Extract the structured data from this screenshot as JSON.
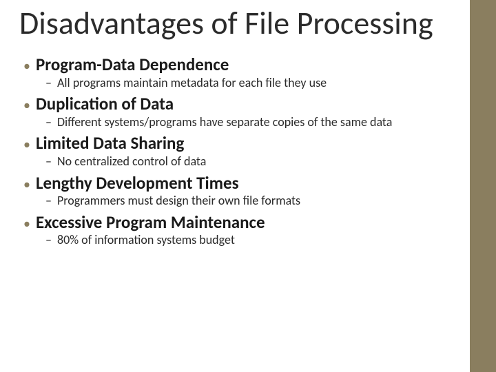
{
  "title": "Disadvantages of File Processing",
  "points": [
    {
      "heading": "Program-Data Dependence",
      "sub": "All programs maintain metadata for each file they use"
    },
    {
      "heading": "Duplication of Data",
      "sub": "Different systems/programs have separate copies of the same data"
    },
    {
      "heading": "Limited Data Sharing",
      "sub": "No centralized control of data"
    },
    {
      "heading": "Lengthy Development Times",
      "sub": "Programmers must design their own file formats"
    },
    {
      "heading": "Excessive Program Maintenance",
      "sub": "80% of information systems budget"
    }
  ],
  "colors": {
    "sidebar": "#8a7e5f",
    "bullet_dot": "#8a7e5f",
    "text": "#2b2b2b",
    "background": "#ffffff"
  },
  "typography": {
    "title_fontsize": 46,
    "heading_fontsize": 25,
    "sub_fontsize": 18,
    "font_family": "Calibri"
  }
}
